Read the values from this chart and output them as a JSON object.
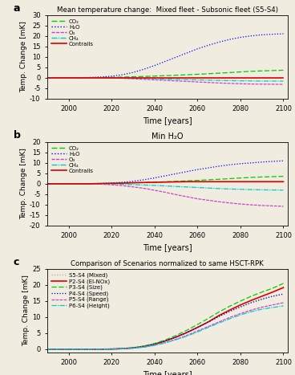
{
  "title_a": "Mean temperature change:  Mixed fleet - Subsonic fleet (S5-S4)",
  "title_b": "Min H₂O",
  "title_c": "Comparison of Scenarios normalized to same HSCT-RPK",
  "xlabel": "Time [years]",
  "ylabel": "Temp. Change [mK]",
  "years": [
    1990,
    1995,
    2000,
    2005,
    2010,
    2015,
    2020,
    2025,
    2030,
    2035,
    2040,
    2045,
    2050,
    2055,
    2060,
    2065,
    2070,
    2075,
    2080,
    2085,
    2090,
    2095,
    2100
  ],
  "panel_a": {
    "CO2": [
      0,
      0,
      0,
      0.02,
      0.05,
      0.1,
      0.18,
      0.28,
      0.42,
      0.58,
      0.75,
      0.95,
      1.15,
      1.38,
      1.62,
      1.88,
      2.15,
      2.45,
      2.75,
      3.05,
      3.25,
      3.4,
      3.55
    ],
    "H2O": [
      0,
      0,
      0,
      0.03,
      0.1,
      0.3,
      0.7,
      1.4,
      2.5,
      4.0,
      5.8,
      7.8,
      9.8,
      11.8,
      13.8,
      15.5,
      17.0,
      18.3,
      19.3,
      20.0,
      20.5,
      20.8,
      21.0
    ],
    "O3": [
      0,
      0,
      0,
      -0.01,
      -0.03,
      -0.08,
      -0.15,
      -0.3,
      -0.55,
      -0.8,
      -1.05,
      -1.3,
      -1.55,
      -1.8,
      -2.05,
      -2.3,
      -2.55,
      -2.75,
      -2.9,
      -3.05,
      -3.1,
      -3.15,
      -3.2
    ],
    "CH4": [
      0,
      0,
      0,
      -0.01,
      -0.03,
      -0.06,
      -0.1,
      -0.18,
      -0.3,
      -0.42,
      -0.55,
      -0.68,
      -0.82,
      -0.95,
      -1.08,
      -1.2,
      -1.32,
      -1.42,
      -1.5,
      -1.58,
      -1.62,
      -1.65,
      -1.68
    ],
    "Contrails": [
      0,
      0,
      0,
      0,
      0,
      0,
      0,
      0,
      0,
      0,
      0,
      0,
      0,
      0,
      0,
      0,
      0,
      0,
      0,
      0,
      0,
      0,
      0
    ],
    "ylim": [
      -10,
      30
    ],
    "yticks": [
      -10,
      -5,
      0,
      5,
      10,
      15,
      20,
      25,
      30
    ]
  },
  "panel_b": {
    "CO2": [
      0,
      0,
      0,
      0.02,
      0.05,
      0.1,
      0.18,
      0.28,
      0.42,
      0.58,
      0.75,
      0.95,
      1.15,
      1.38,
      1.62,
      1.88,
      2.15,
      2.45,
      2.75,
      3.05,
      3.25,
      3.4,
      3.55
    ],
    "H2O": [
      0,
      0,
      0,
      0.02,
      0.06,
      0.15,
      0.35,
      0.7,
      1.2,
      1.9,
      2.8,
      3.8,
      4.8,
      5.8,
      6.8,
      7.6,
      8.4,
      9.1,
      9.6,
      10.0,
      10.4,
      10.7,
      11.0
    ],
    "O3": [
      0,
      0,
      0,
      -0.02,
      -0.08,
      -0.2,
      -0.5,
      -0.9,
      -1.5,
      -2.2,
      -3.1,
      -4.1,
      -5.2,
      -6.2,
      -7.2,
      -7.9,
      -8.6,
      -9.2,
      -9.7,
      -10.1,
      -10.4,
      -10.6,
      -10.8
    ],
    "CH4": [
      0,
      0,
      0,
      -0.01,
      -0.04,
      -0.08,
      -0.15,
      -0.25,
      -0.4,
      -0.6,
      -0.8,
      -1.05,
      -1.3,
      -1.55,
      -1.8,
      -2.05,
      -2.3,
      -2.5,
      -2.65,
      -2.8,
      -2.9,
      -3.0,
      -3.05
    ],
    "Contrails": [
      0,
      0,
      0,
      0,
      0,
      0.1,
      0.2,
      0.3,
      0.5,
      0.6,
      0.7,
      0.8,
      0.9,
      1.0,
      1.0,
      1.0,
      1.0,
      1.0,
      1.0,
      1.0,
      1.0,
      1.0,
      1.0
    ],
    "ylim": [
      -20,
      20
    ],
    "yticks": [
      -20,
      -15,
      -10,
      -5,
      0,
      5,
      10,
      15,
      20
    ]
  },
  "panel_c": {
    "S5S4_mixed": [
      0,
      0,
      0,
      0.0,
      0.01,
      0.03,
      0.08,
      0.2,
      0.45,
      0.9,
      1.6,
      2.6,
      3.8,
      5.2,
      6.8,
      8.5,
      10.2,
      11.8,
      13.2,
      14.5,
      15.6,
      16.5,
      17.2
    ],
    "P2S4_EINOx": [
      0,
      0,
      0,
      0.0,
      0.01,
      0.03,
      0.08,
      0.2,
      0.45,
      0.9,
      1.6,
      2.6,
      3.8,
      5.2,
      6.8,
      8.5,
      10.5,
      12.2,
      13.8,
      15.2,
      16.5,
      17.8,
      19.2
    ],
    "P3S4_Size": [
      0,
      0,
      0,
      0.0,
      0.01,
      0.03,
      0.09,
      0.22,
      0.5,
      1.0,
      1.8,
      2.9,
      4.3,
      5.9,
      7.7,
      9.6,
      11.6,
      13.4,
      15.0,
      16.5,
      17.8,
      19.0,
      20.5
    ],
    "P4S4_Speed": [
      0,
      0,
      0,
      0.0,
      0.01,
      0.03,
      0.08,
      0.2,
      0.45,
      0.9,
      1.6,
      2.6,
      3.8,
      5.2,
      6.8,
      8.5,
      10.2,
      11.8,
      13.2,
      14.5,
      15.6,
      16.5,
      17.2
    ],
    "P5S4_Range": [
      0,
      0,
      0,
      0.0,
      0.01,
      0.02,
      0.06,
      0.15,
      0.35,
      0.7,
      1.3,
      2.1,
      3.1,
      4.3,
      5.7,
      7.1,
      8.5,
      9.9,
      11.1,
      12.2,
      13.1,
      13.8,
      14.5
    ],
    "P6S4_Height": [
      0,
      0,
      0,
      0.0,
      0.01,
      0.02,
      0.06,
      0.14,
      0.33,
      0.65,
      1.2,
      2.0,
      3.0,
      4.1,
      5.4,
      6.8,
      8.2,
      9.5,
      10.7,
      11.7,
      12.5,
      13.0,
      13.5
    ],
    "ylim": [
      -1,
      25
    ],
    "yticks": [
      0,
      5,
      10,
      15,
      20,
      25
    ]
  },
  "colors": {
    "CO2": "#00cc00",
    "H2O": "#0000ff",
    "O3": "#cc44cc",
    "CH4": "#00cccc",
    "Contrails": "#dd0000",
    "S5S4_mixed": "#aaaaaa",
    "P2S4_EINOx": "#dd0000",
    "P3S4_Size": "#00cc00",
    "P4S4_Speed": "#0000cc",
    "P5S4_Range": "#cc44cc",
    "P6S4_Height": "#00cccc"
  },
  "xticks": [
    2000,
    2020,
    2040,
    2060,
    2080,
    2100
  ],
  "xlim": [
    1990,
    2102
  ],
  "bg_color": "#f0ede0"
}
